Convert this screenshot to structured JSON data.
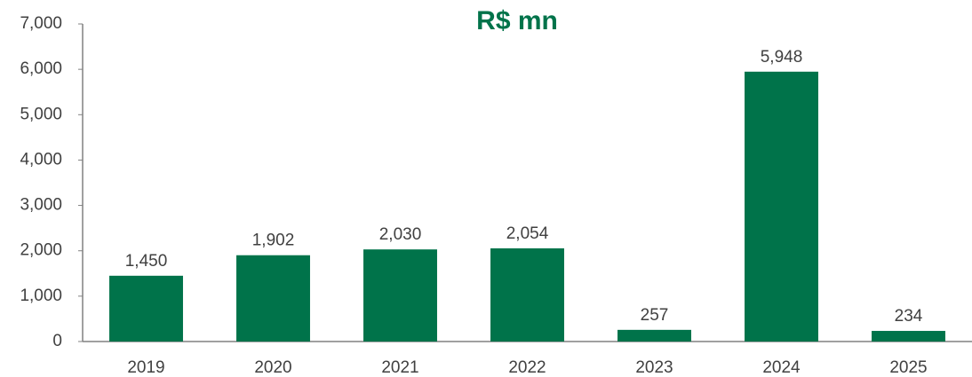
{
  "chart_data": {
    "type": "bar",
    "title": "R$ mn",
    "categories": [
      "2019",
      "2020",
      "2021",
      "2022",
      "2023",
      "2024",
      "2025"
    ],
    "values": [
      1450,
      1902,
      2030,
      2054,
      257,
      5948,
      234
    ],
    "value_labels": [
      "1,450",
      "1,902",
      "2,030",
      "2,054",
      "257",
      "5,948",
      "234"
    ],
    "color": "#00734a",
    "ylim": [
      0,
      7000
    ],
    "yticks": [
      0,
      {
        "value": 1000,
        "label": "1,000"
      },
      {
        "value": 2000,
        "label": "2,000"
      },
      {
        "value": 3000,
        "label": "3,000"
      },
      {
        "value": 4000,
        "label": "4,000"
      },
      {
        "value": 5000,
        "label": "5,000"
      },
      {
        "value": 6000,
        "label": "6,000"
      },
      {
        "value": 7000,
        "label": "7,000"
      }
    ],
    "grid": false
  }
}
